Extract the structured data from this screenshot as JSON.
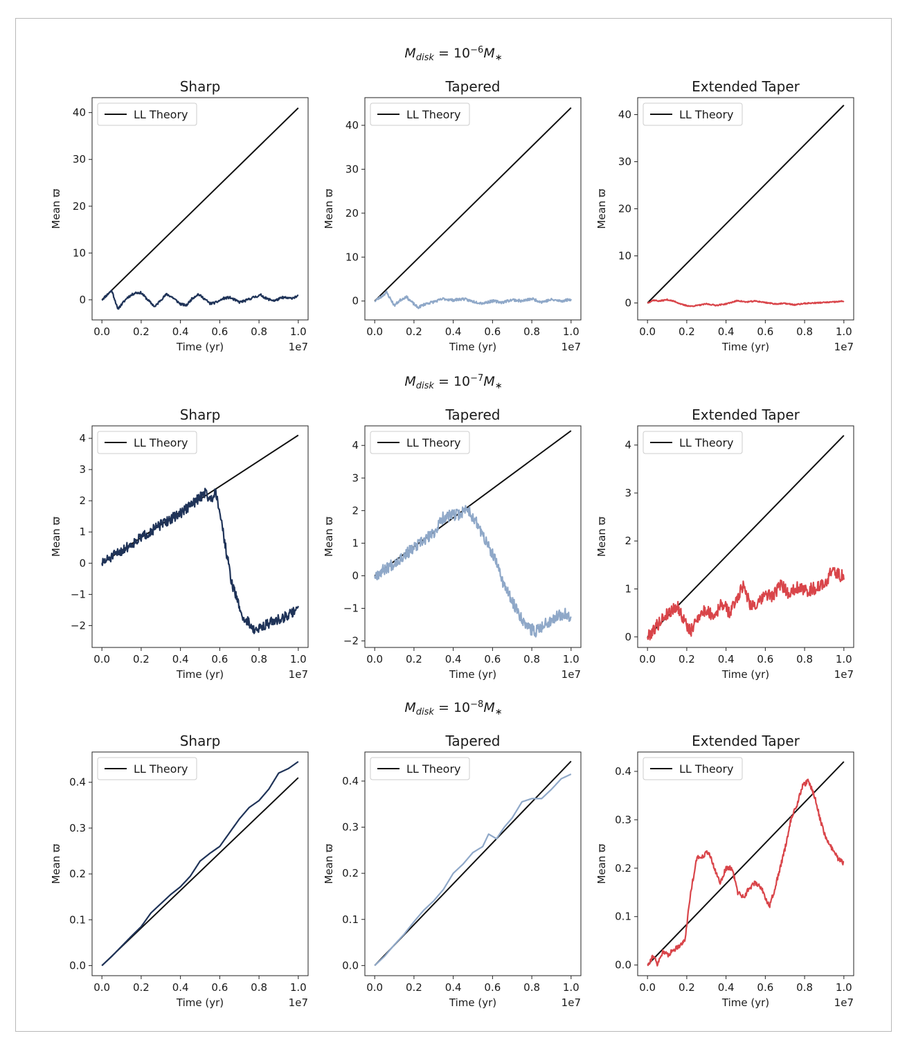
{
  "row_titles": [
    {
      "base": "M",
      "sub": "disk",
      "eq": " = 10",
      "exp": "−6",
      "mass": "M",
      "star": "∗"
    },
    {
      "base": "M",
      "sub": "disk",
      "eq": " = 10",
      "exp": "−7",
      "mass": "M",
      "star": "∗"
    },
    {
      "base": "M",
      "sub": "disk",
      "eq": " = 10",
      "exp": "−8",
      "mass": "M",
      "star": "∗"
    }
  ],
  "colors": {
    "sharp": "#1f3358",
    "tapered": "#8fa8c8",
    "extended": "#d9454a",
    "theory": "#111111"
  },
  "chart_data": [
    {
      "type": "line",
      "row": 0,
      "col": 0,
      "title": "Sharp",
      "xlabel": "Time (yr)",
      "ylabel": "Mean ϖ",
      "x_offset_label": "1e7",
      "xlim": [
        -0.05,
        1.05
      ],
      "ylim": [
        -4.3,
        43.2
      ],
      "xticks": [
        "0.0",
        "0.2",
        "0.4",
        "0.6",
        "0.8",
        "1.0"
      ],
      "yticks": [
        0,
        10,
        20,
        30,
        40
      ],
      "legend": {
        "label": "LL Theory",
        "loc": "upper left"
      },
      "theory": [
        [
          0,
          0
        ],
        [
          1,
          41
        ]
      ],
      "color": "sharp",
      "noise": 0.25,
      "seed": 11,
      "series": [
        [
          0,
          0
        ],
        [
          0.02,
          0.8
        ],
        [
          0.05,
          2.0
        ],
        [
          0.07,
          -0.5
        ],
        [
          0.08,
          -2.0
        ],
        [
          0.1,
          -1.0
        ],
        [
          0.13,
          0.5
        ],
        [
          0.17,
          1.5
        ],
        [
          0.2,
          1.5
        ],
        [
          0.24,
          -0.3
        ],
        [
          0.27,
          -1.5
        ],
        [
          0.3,
          0
        ],
        [
          0.33,
          1.2
        ],
        [
          0.36,
          0.5
        ],
        [
          0.4,
          -0.9
        ],
        [
          0.43,
          -1.2
        ],
        [
          0.46,
          0.3
        ],
        [
          0.49,
          1.2
        ],
        [
          0.52,
          0.3
        ],
        [
          0.55,
          -0.8
        ],
        [
          0.58,
          -0.6
        ],
        [
          0.62,
          0.3
        ],
        [
          0.65,
          0.5
        ],
        [
          0.7,
          -0.5
        ],
        [
          0.73,
          -0.2
        ],
        [
          0.77,
          0.5
        ],
        [
          0.81,
          1.0
        ],
        [
          0.84,
          0.2
        ],
        [
          0.88,
          -0.2
        ],
        [
          0.92,
          0.5
        ],
        [
          0.96,
          0.3
        ],
        [
          1.0,
          0.8
        ]
      ]
    },
    {
      "type": "line",
      "row": 0,
      "col": 1,
      "title": "Tapered",
      "xlabel": "Time (yr)",
      "ylabel": "Mean ϖ",
      "x_offset_label": "1e7",
      "xlim": [
        -0.05,
        1.05
      ],
      "ylim": [
        -4.3,
        46.3
      ],
      "xticks": [
        "0.0",
        "0.2",
        "0.4",
        "0.6",
        "0.8",
        "1.0"
      ],
      "yticks": [
        0,
        10,
        20,
        30,
        40
      ],
      "legend": {
        "label": "LL Theory",
        "loc": "upper left"
      },
      "theory": [
        [
          0,
          0
        ],
        [
          1,
          44
        ]
      ],
      "color": "tapered",
      "noise": 0.3,
      "seed": 23,
      "series": [
        [
          0,
          0
        ],
        [
          0.02,
          0.6
        ],
        [
          0.04,
          1.2
        ],
        [
          0.06,
          2.0
        ],
        [
          0.08,
          0.5
        ],
        [
          0.1,
          -1.0
        ],
        [
          0.13,
          0.2
        ],
        [
          0.16,
          1.0
        ],
        [
          0.19,
          -0.3
        ],
        [
          0.22,
          -1.5
        ],
        [
          0.26,
          -0.6
        ],
        [
          0.3,
          -0.2
        ],
        [
          0.35,
          0.5
        ],
        [
          0.4,
          0.2
        ],
        [
          0.45,
          0.5
        ],
        [
          0.5,
          -0.1
        ],
        [
          0.55,
          -0.5
        ],
        [
          0.6,
          0
        ],
        [
          0.65,
          -0.3
        ],
        [
          0.7,
          0.3
        ],
        [
          0.75,
          0
        ],
        [
          0.8,
          0.5
        ],
        [
          0.85,
          -0.2
        ],
        [
          0.9,
          0.3
        ],
        [
          0.95,
          0
        ],
        [
          1.0,
          0.4
        ]
      ]
    },
    {
      "type": "line",
      "row": 0,
      "col": 2,
      "title": "Extended Taper",
      "xlabel": "Time (yr)",
      "ylabel": "Mean ϖ",
      "x_offset_label": "1e7",
      "xlim": [
        -0.05,
        1.05
      ],
      "ylim": [
        -3.6,
        43.6
      ],
      "xticks": [
        "0.0",
        "0.2",
        "0.4",
        "0.6",
        "0.8",
        "1.0"
      ],
      "yticks": [
        0,
        10,
        20,
        30,
        40
      ],
      "legend": {
        "label": "LL Theory",
        "loc": "upper left"
      },
      "theory": [
        [
          0,
          0
        ],
        [
          1,
          42
        ]
      ],
      "color": "extended",
      "noise": 0.12,
      "seed": 37,
      "series": [
        [
          0,
          0
        ],
        [
          0.03,
          0.6
        ],
        [
          0.06,
          0.4
        ],
        [
          0.1,
          0.7
        ],
        [
          0.14,
          0.3
        ],
        [
          0.18,
          -0.4
        ],
        [
          0.22,
          -0.7
        ],
        [
          0.26,
          -0.5
        ],
        [
          0.3,
          -0.2
        ],
        [
          0.35,
          -0.5
        ],
        [
          0.4,
          -0.2
        ],
        [
          0.46,
          0.5
        ],
        [
          0.5,
          0.2
        ],
        [
          0.55,
          0.4
        ],
        [
          0.6,
          0.1
        ],
        [
          0.65,
          -0.2
        ],
        [
          0.7,
          -0.1
        ],
        [
          0.75,
          -0.4
        ],
        [
          0.8,
          -0.1
        ],
        [
          0.85,
          0
        ],
        [
          0.9,
          0.1
        ],
        [
          0.95,
          0.2
        ],
        [
          1.0,
          0.4
        ]
      ]
    },
    {
      "type": "line",
      "row": 1,
      "col": 0,
      "title": "Sharp",
      "xlabel": "Time (yr)",
      "ylabel": "Mean ϖ",
      "x_offset_label": "1e7",
      "xlim": [
        -0.05,
        1.05
      ],
      "ylim": [
        -2.7,
        4.4
      ],
      "xticks": [
        "0.0",
        "0.2",
        "0.4",
        "0.6",
        "0.8",
        "1.0"
      ],
      "yticks": [
        -2,
        -1,
        0,
        1,
        2,
        3,
        4
      ],
      "legend": {
        "label": "LL Theory",
        "loc": "upper left"
      },
      "theory": [
        [
          0,
          0
        ],
        [
          1,
          4.1
        ]
      ],
      "color": "sharp",
      "noise": 0.16,
      "seed": 51,
      "series": [
        [
          0,
          0
        ],
        [
          0.1,
          0.4
        ],
        [
          0.2,
          0.82
        ],
        [
          0.3,
          1.23
        ],
        [
          0.4,
          1.6
        ],
        [
          0.45,
          1.85
        ],
        [
          0.5,
          2.1
        ],
        [
          0.53,
          2.3
        ],
        [
          0.55,
          2.0
        ],
        [
          0.58,
          2.3
        ],
        [
          0.6,
          1.7
        ],
        [
          0.63,
          0.5
        ],
        [
          0.66,
          -0.6
        ],
        [
          0.69,
          -1.2
        ],
        [
          0.72,
          -1.8
        ],
        [
          0.75,
          -1.9
        ],
        [
          0.78,
          -2.2
        ],
        [
          0.82,
          -2.0
        ],
        [
          0.86,
          -1.9
        ],
        [
          0.9,
          -1.8
        ],
        [
          0.94,
          -1.7
        ],
        [
          0.97,
          -1.6
        ],
        [
          1.0,
          -1.35
        ]
      ]
    },
    {
      "type": "line",
      "row": 1,
      "col": 1,
      "title": "Tapered",
      "xlabel": "Time (yr)",
      "ylabel": "Mean ϖ",
      "x_offset_label": "1e7",
      "xlim": [
        -0.05,
        1.05
      ],
      "ylim": [
        -2.2,
        4.6
      ],
      "xticks": [
        "0.0",
        "0.2",
        "0.4",
        "0.6",
        "0.8",
        "1.0"
      ],
      "yticks": [
        -2,
        -1,
        0,
        1,
        2,
        3,
        4
      ],
      "legend": {
        "label": "LL Theory",
        "loc": "upper left"
      },
      "theory": [
        [
          0,
          0
        ],
        [
          1,
          4.45
        ]
      ],
      "color": "tapered",
      "noise": 0.18,
      "seed": 67,
      "series": [
        [
          0,
          0
        ],
        [
          0.1,
          0.4
        ],
        [
          0.2,
          0.85
        ],
        [
          0.3,
          1.3
        ],
        [
          0.35,
          1.8
        ],
        [
          0.4,
          1.85
        ],
        [
          0.44,
          1.9
        ],
        [
          0.47,
          2.1
        ],
        [
          0.5,
          1.8
        ],
        [
          0.53,
          1.5
        ],
        [
          0.57,
          1.0
        ],
        [
          0.62,
          0.4
        ],
        [
          0.66,
          -0.3
        ],
        [
          0.7,
          -0.8
        ],
        [
          0.74,
          -1.2
        ],
        [
          0.78,
          -1.6
        ],
        [
          0.82,
          -1.7
        ],
        [
          0.86,
          -1.5
        ],
        [
          0.9,
          -1.35
        ],
        [
          0.94,
          -1.2
        ],
        [
          0.97,
          -1.15
        ],
        [
          1.0,
          -1.3
        ]
      ]
    },
    {
      "type": "line",
      "row": 1,
      "col": 2,
      "title": "Extended Taper",
      "xlabel": "Time (yr)",
      "ylabel": "Mean ϖ",
      "x_offset_label": "1e7",
      "xlim": [
        -0.05,
        1.05
      ],
      "ylim": [
        -0.22,
        4.4
      ],
      "xticks": [
        "0.0",
        "0.2",
        "0.4",
        "0.6",
        "0.8",
        "1.0"
      ],
      "yticks": [
        0,
        1,
        2,
        3,
        4
      ],
      "legend": {
        "label": "LL Theory",
        "loc": "upper left"
      },
      "theory": [
        [
          0,
          0
        ],
        [
          1,
          4.2
        ]
      ],
      "color": "extended",
      "noise": 0.13,
      "seed": 79,
      "series": [
        [
          0,
          0
        ],
        [
          0.04,
          0.2
        ],
        [
          0.08,
          0.4
        ],
        [
          0.12,
          0.55
        ],
        [
          0.15,
          0.65
        ],
        [
          0.18,
          0.4
        ],
        [
          0.22,
          0.1
        ],
        [
          0.26,
          0.45
        ],
        [
          0.3,
          0.55
        ],
        [
          0.34,
          0.45
        ],
        [
          0.38,
          0.7
        ],
        [
          0.42,
          0.5
        ],
        [
          0.46,
          0.85
        ],
        [
          0.49,
          1.1
        ],
        [
          0.52,
          0.7
        ],
        [
          0.56,
          0.65
        ],
        [
          0.6,
          0.9
        ],
        [
          0.64,
          0.85
        ],
        [
          0.68,
          1.1
        ],
        [
          0.72,
          0.9
        ],
        [
          0.76,
          1.05
        ],
        [
          0.8,
          0.95
        ],
        [
          0.84,
          1.0
        ],
        [
          0.88,
          1.05
        ],
        [
          0.91,
          1.15
        ],
        [
          0.94,
          1.4
        ],
        [
          0.97,
          1.3
        ],
        [
          1.0,
          1.25
        ]
      ]
    },
    {
      "type": "line",
      "row": 2,
      "col": 0,
      "title": "Sharp",
      "xlabel": "Time (yr)",
      "ylabel": "Mean ϖ",
      "x_offset_label": "1e7",
      "xlim": [
        -0.05,
        1.05
      ],
      "ylim": [
        -0.022,
        0.466
      ],
      "xticks": [
        "0.0",
        "0.2",
        "0.4",
        "0.6",
        "0.8",
        "1.0"
      ],
      "yticks": [
        "0.0",
        "0.1",
        "0.2",
        "0.3",
        "0.4"
      ],
      "legend": {
        "label": "LL Theory",
        "loc": "upper left"
      },
      "theory": [
        [
          0,
          0
        ],
        [
          1,
          0.41
        ]
      ],
      "color": "sharp",
      "noise": 0,
      "seed": 3,
      "series": [
        [
          0,
          0
        ],
        [
          0.05,
          0.02
        ],
        [
          0.1,
          0.042
        ],
        [
          0.15,
          0.064
        ],
        [
          0.2,
          0.085
        ],
        [
          0.25,
          0.115
        ],
        [
          0.3,
          0.135
        ],
        [
          0.35,
          0.155
        ],
        [
          0.4,
          0.172
        ],
        [
          0.45,
          0.195
        ],
        [
          0.5,
          0.228
        ],
        [
          0.55,
          0.245
        ],
        [
          0.6,
          0.26
        ],
        [
          0.65,
          0.29
        ],
        [
          0.7,
          0.32
        ],
        [
          0.75,
          0.345
        ],
        [
          0.8,
          0.36
        ],
        [
          0.85,
          0.385
        ],
        [
          0.9,
          0.42
        ],
        [
          0.95,
          0.43
        ],
        [
          1.0,
          0.445
        ]
      ]
    },
    {
      "type": "line",
      "row": 2,
      "col": 1,
      "title": "Tapered",
      "xlabel": "Time (yr)",
      "ylabel": "Mean ϖ",
      "x_offset_label": "1e7",
      "xlim": [
        -0.05,
        1.05
      ],
      "ylim": [
        -0.022,
        0.463
      ],
      "xticks": [
        "0.0",
        "0.2",
        "0.4",
        "0.6",
        "0.8",
        "1.0"
      ],
      "yticks": [
        "0.0",
        "0.1",
        "0.2",
        "0.3",
        "0.4"
      ],
      "legend": {
        "label": "LL Theory",
        "loc": "upper left"
      },
      "theory": [
        [
          0,
          0
        ],
        [
          1,
          0.443
        ]
      ],
      "color": "tapered",
      "noise": 0,
      "seed": 5,
      "series": [
        [
          0,
          0
        ],
        [
          0.05,
          0.02
        ],
        [
          0.1,
          0.045
        ],
        [
          0.15,
          0.068
        ],
        [
          0.2,
          0.095
        ],
        [
          0.25,
          0.12
        ],
        [
          0.3,
          0.14
        ],
        [
          0.35,
          0.165
        ],
        [
          0.4,
          0.2
        ],
        [
          0.45,
          0.22
        ],
        [
          0.5,
          0.245
        ],
        [
          0.55,
          0.258
        ],
        [
          0.58,
          0.285
        ],
        [
          0.62,
          0.275
        ],
        [
          0.66,
          0.3
        ],
        [
          0.7,
          0.32
        ],
        [
          0.75,
          0.355
        ],
        [
          0.8,
          0.362
        ],
        [
          0.85,
          0.362
        ],
        [
          0.9,
          0.382
        ],
        [
          0.95,
          0.405
        ],
        [
          1.0,
          0.415
        ]
      ]
    },
    {
      "type": "line",
      "row": 2,
      "col": 2,
      "title": "Extended Taper",
      "xlabel": "Time (yr)",
      "ylabel": "Mean ϖ",
      "x_offset_label": "1e7",
      "xlim": [
        -0.05,
        1.05
      ],
      "ylim": [
        -0.022,
        0.44
      ],
      "xticks": [
        "0.0",
        "0.2",
        "0.4",
        "0.6",
        "0.8",
        "1.0"
      ],
      "yticks": [
        "0.0",
        "0.1",
        "0.2",
        "0.3",
        "0.4"
      ],
      "legend": {
        "label": "LL Theory",
        "loc": "upper left"
      },
      "theory": [
        [
          0,
          0
        ],
        [
          1,
          0.42
        ]
      ],
      "color": "extended",
      "noise": 0.005,
      "seed": 91,
      "series": [
        [
          0,
          0
        ],
        [
          0.03,
          0.02
        ],
        [
          0.05,
          0
        ],
        [
          0.08,
          0.03
        ],
        [
          0.1,
          0.02
        ],
        [
          0.13,
          0.03
        ],
        [
          0.16,
          0.04
        ],
        [
          0.19,
          0.05
        ],
        [
          0.22,
          0.15
        ],
        [
          0.25,
          0.22
        ],
        [
          0.28,
          0.225
        ],
        [
          0.31,
          0.235
        ],
        [
          0.34,
          0.2
        ],
        [
          0.37,
          0.17
        ],
        [
          0.4,
          0.2
        ],
        [
          0.43,
          0.2
        ],
        [
          0.46,
          0.15
        ],
        [
          0.49,
          0.14
        ],
        [
          0.52,
          0.16
        ],
        [
          0.55,
          0.17
        ],
        [
          0.58,
          0.16
        ],
        [
          0.62,
          0.12
        ],
        [
          0.65,
          0.16
        ],
        [
          0.7,
          0.24
        ],
        [
          0.73,
          0.3
        ],
        [
          0.76,
          0.33
        ],
        [
          0.79,
          0.37
        ],
        [
          0.82,
          0.38
        ],
        [
          0.85,
          0.35
        ],
        [
          0.88,
          0.3
        ],
        [
          0.91,
          0.26
        ],
        [
          0.94,
          0.24
        ],
        [
          0.97,
          0.22
        ],
        [
          1.0,
          0.21
        ]
      ]
    }
  ]
}
